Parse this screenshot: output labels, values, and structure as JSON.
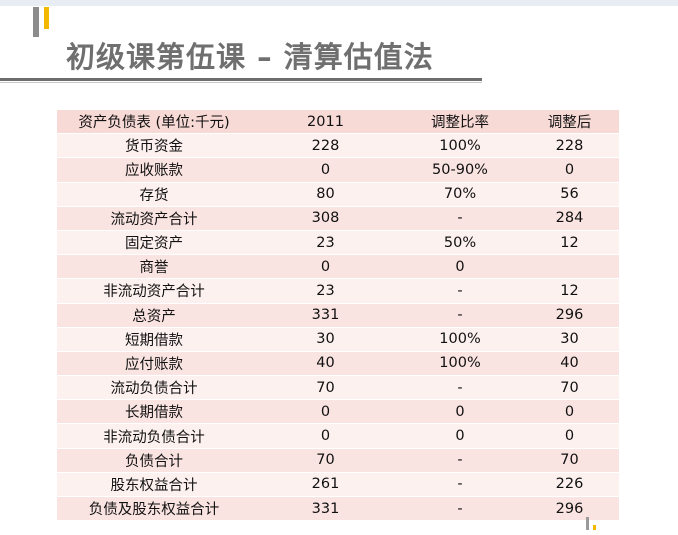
{
  "slide": {
    "title": "初级课第伍课 – 清算估值法",
    "accent_gray": "#8c8c8c",
    "accent_gold": "#f2b900"
  },
  "table": {
    "headers": [
      "资产负债表 (单位:千元)",
      "2011",
      "调整比率",
      "调整后"
    ],
    "rows": [
      [
        "货币资金",
        "228",
        "100%",
        "228"
      ],
      [
        "应收账款",
        "0",
        "50-90%",
        "0"
      ],
      [
        "存货",
        "80",
        "70%",
        "56"
      ],
      [
        "流动资产合计",
        "308",
        "-",
        "284"
      ],
      [
        "固定资产",
        "23",
        "50%",
        "12"
      ],
      [
        "商誉",
        "0",
        "0",
        ""
      ],
      [
        "非流动资产合计",
        "23",
        "-",
        "12"
      ],
      [
        "总资产",
        "331",
        "-",
        "296"
      ],
      [
        "短期借款",
        "30",
        "100%",
        "30"
      ],
      [
        "应付账款",
        "40",
        "100%",
        "40"
      ],
      [
        "流动负债合计",
        "70",
        "-",
        "70"
      ],
      [
        "长期借款",
        "0",
        "0",
        "0"
      ],
      [
        "非流动负债合计",
        "0",
        "0",
        "0"
      ],
      [
        "负债合计",
        "70",
        "-",
        "70"
      ],
      [
        "股东权益合计",
        "261",
        "-",
        "226"
      ],
      [
        "负债及股东权益合计",
        "331",
        "-",
        "296"
      ]
    ],
    "header_bg": "#f7d9d5",
    "row_bg_odd": "#fdf1ef",
    "row_bg_even": "#fae4e1"
  }
}
